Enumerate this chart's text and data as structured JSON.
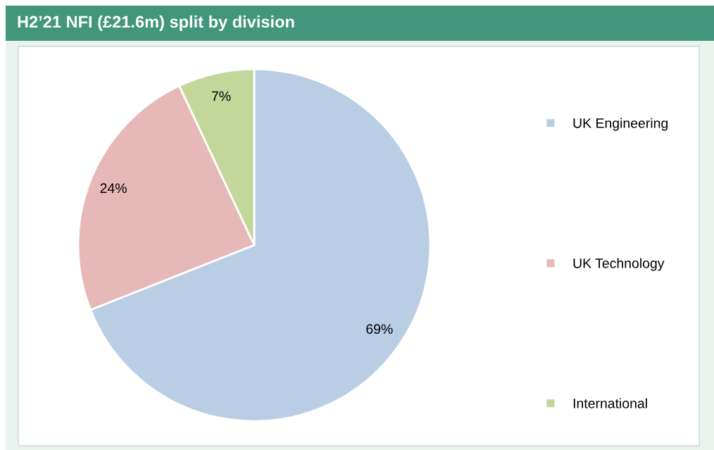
{
  "chart_data": {
    "type": "pie",
    "title": "H2’21 NFI (£21.6m) split by division",
    "categories": [
      "UK Engineering",
      "UK Technology",
      "International"
    ],
    "values": [
      69,
      24,
      7
    ],
    "colors": [
      "#b9cde5",
      "#e6b9b8",
      "#c4d79b"
    ],
    "value_labels": [
      "69%",
      "24%",
      "7%"
    ],
    "legend": "right"
  }
}
